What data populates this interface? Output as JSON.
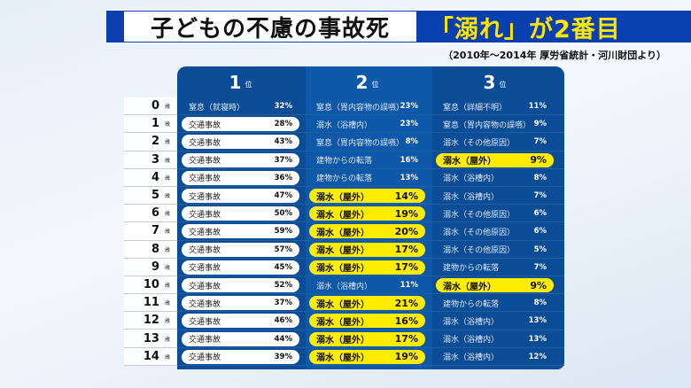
{
  "title": {
    "main": "子どもの不慮の事故死",
    "highlight": "「溺れ」が2番目"
  },
  "source": "（2010年～2014年 厚労省統計・河川財団より）",
  "headers": [
    {
      "rank": "1",
      "suffix": "位"
    },
    {
      "rank": "2",
      "suffix": "位"
    },
    {
      "rank": "3",
      "suffix": "位"
    }
  ],
  "age_suffix": "歳",
  "colors": {
    "band": "#0a3fb0",
    "table": "#0b4c96",
    "highlight": "#ffec00",
    "title_yellow": "#ffe600"
  },
  "rows": [
    {
      "age": "0",
      "cells": [
        {
          "cause": "窒息（就寝時）",
          "pct": "32%",
          "style": "plain"
        },
        {
          "cause": "窒息（胃内容物の誤嚥）",
          "pct": "23%",
          "style": "plain"
        },
        {
          "cause": "窒息（詳細不明）",
          "pct": "11%",
          "style": "plain"
        }
      ]
    },
    {
      "age": "1",
      "cells": [
        {
          "cause": "交通事故",
          "pct": "28%",
          "style": "white"
        },
        {
          "cause": "溺水（浴槽内）",
          "pct": "23%",
          "style": "plain"
        },
        {
          "cause": "窒息（胃内容物の誤嚥）",
          "pct": "9%",
          "style": "plain"
        }
      ]
    },
    {
      "age": "2",
      "cells": [
        {
          "cause": "交通事故",
          "pct": "43%",
          "style": "white"
        },
        {
          "cause": "窒息（胃内容物の誤嚥）",
          "pct": "8%",
          "style": "plain"
        },
        {
          "cause": "溺水（その他原因）",
          "pct": "7%",
          "style": "plain"
        }
      ]
    },
    {
      "age": "3",
      "cells": [
        {
          "cause": "交通事故",
          "pct": "37%",
          "style": "white"
        },
        {
          "cause": "建物からの転落",
          "pct": "16%",
          "style": "plain"
        },
        {
          "cause": "溺水（屋外）",
          "pct": "9%",
          "style": "yellow"
        }
      ]
    },
    {
      "age": "4",
      "cells": [
        {
          "cause": "交通事故",
          "pct": "36%",
          "style": "white"
        },
        {
          "cause": "建物からの転落",
          "pct": "13%",
          "style": "plain"
        },
        {
          "cause": "溺水（浴槽内）",
          "pct": "8%",
          "style": "plain"
        }
      ]
    },
    {
      "age": "5",
      "cells": [
        {
          "cause": "交通事故",
          "pct": "47%",
          "style": "white"
        },
        {
          "cause": "溺水（屋外）",
          "pct": "14%",
          "style": "yellow"
        },
        {
          "cause": "溺水（浴槽内）",
          "pct": "7%",
          "style": "plain"
        }
      ]
    },
    {
      "age": "6",
      "cells": [
        {
          "cause": "交通事故",
          "pct": "50%",
          "style": "white"
        },
        {
          "cause": "溺水（屋外）",
          "pct": "19%",
          "style": "yellow"
        },
        {
          "cause": "溺水（その他原因）",
          "pct": "6%",
          "style": "plain"
        }
      ]
    },
    {
      "age": "7",
      "cells": [
        {
          "cause": "交通事故",
          "pct": "59%",
          "style": "white"
        },
        {
          "cause": "溺水（屋外）",
          "pct": "20%",
          "style": "yellow"
        },
        {
          "cause": "溺水（その他原因）",
          "pct": "6%",
          "style": "plain"
        }
      ]
    },
    {
      "age": "8",
      "cells": [
        {
          "cause": "交通事故",
          "pct": "57%",
          "style": "white"
        },
        {
          "cause": "溺水（屋外）",
          "pct": "17%",
          "style": "yellow"
        },
        {
          "cause": "溺水（その他原因）",
          "pct": "5%",
          "style": "plain"
        }
      ]
    },
    {
      "age": "9",
      "cells": [
        {
          "cause": "交通事故",
          "pct": "45%",
          "style": "white"
        },
        {
          "cause": "溺水（屋外）",
          "pct": "17%",
          "style": "yellow"
        },
        {
          "cause": "建物からの転落",
          "pct": "7%",
          "style": "plain"
        }
      ]
    },
    {
      "age": "10",
      "cells": [
        {
          "cause": "交通事故",
          "pct": "52%",
          "style": "white"
        },
        {
          "cause": "溺水（浴槽内）",
          "pct": "11%",
          "style": "plain"
        },
        {
          "cause": "溺水（屋外）",
          "pct": "9%",
          "style": "yellow"
        }
      ]
    },
    {
      "age": "11",
      "cells": [
        {
          "cause": "交通事故",
          "pct": "37%",
          "style": "white"
        },
        {
          "cause": "溺水（屋外）",
          "pct": "21%",
          "style": "yellow"
        },
        {
          "cause": "建物からの転落",
          "pct": "8%",
          "style": "plain"
        }
      ]
    },
    {
      "age": "12",
      "cells": [
        {
          "cause": "交通事故",
          "pct": "46%",
          "style": "white"
        },
        {
          "cause": "溺水（屋外）",
          "pct": "16%",
          "style": "yellow"
        },
        {
          "cause": "溺水（浴槽内）",
          "pct": "13%",
          "style": "plain"
        }
      ]
    },
    {
      "age": "13",
      "cells": [
        {
          "cause": "交通事故",
          "pct": "44%",
          "style": "white"
        },
        {
          "cause": "溺水（屋外）",
          "pct": "17%",
          "style": "yellow"
        },
        {
          "cause": "溺水（浴槽内）",
          "pct": "13%",
          "style": "plain"
        }
      ]
    },
    {
      "age": "14",
      "cells": [
        {
          "cause": "交通事故",
          "pct": "39%",
          "style": "white"
        },
        {
          "cause": "溺水（屋外）",
          "pct": "19%",
          "style": "yellow"
        },
        {
          "cause": "溺水（浴槽内）",
          "pct": "12%",
          "style": "plain"
        }
      ]
    }
  ]
}
